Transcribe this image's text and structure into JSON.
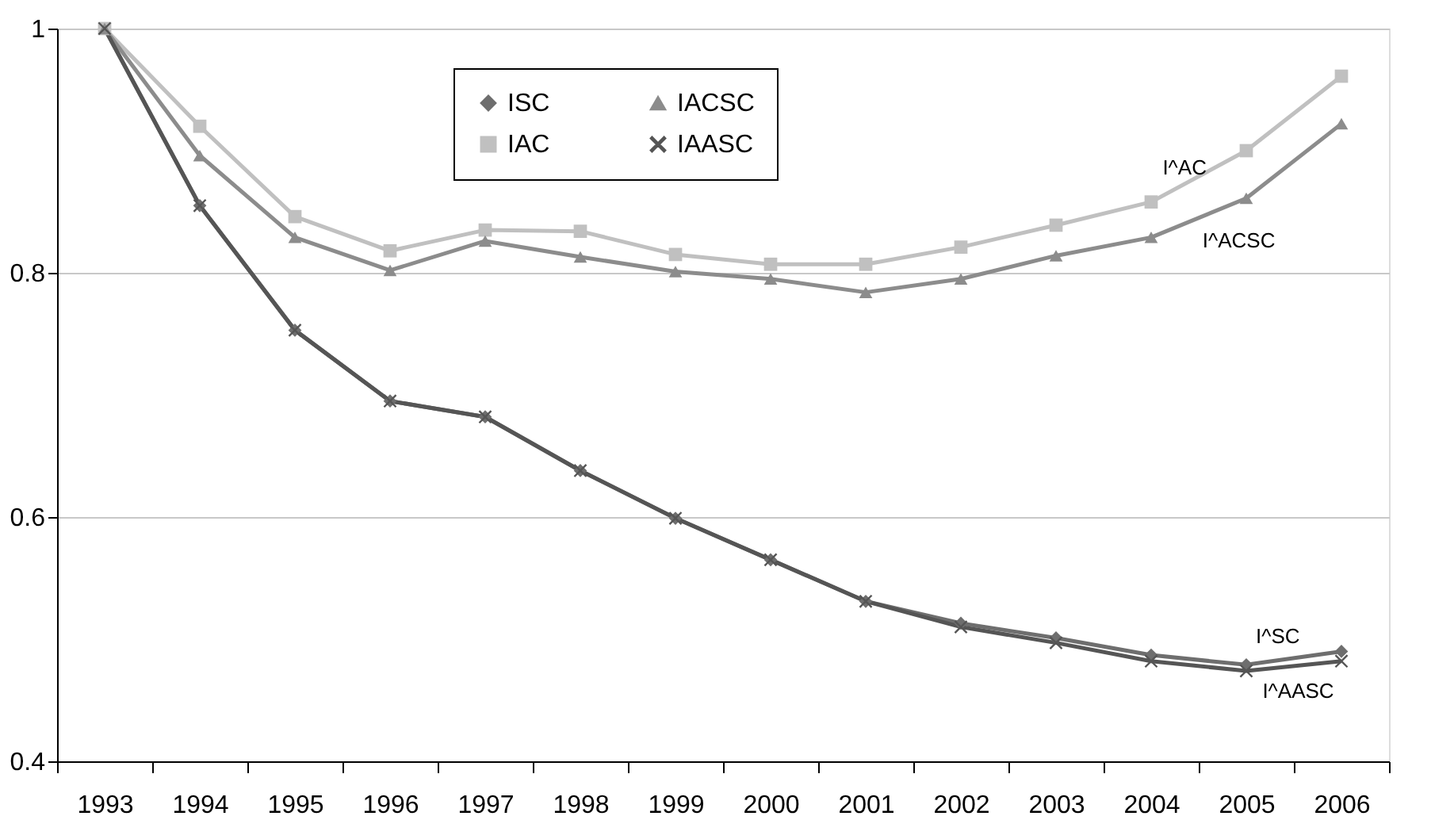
{
  "chart_data": {
    "type": "line",
    "categories": [
      "1993",
      "1994",
      "1995",
      "1996",
      "1997",
      "1998",
      "1999",
      "2000",
      "2001",
      "2002",
      "2003",
      "2004",
      "2005",
      "2006"
    ],
    "series": [
      {
        "name": "ISC",
        "color": "#6e6e6e",
        "marker": "diamond",
        "values": [
          1.0,
          0.855,
          0.753,
          0.695,
          0.682,
          0.638,
          0.599,
          0.565,
          0.531,
          0.513,
          0.501,
          0.487,
          0.479,
          0.49
        ]
      },
      {
        "name": "IAC",
        "color": "#c0c0c0",
        "marker": "square",
        "values": [
          1.0,
          0.92,
          0.846,
          0.818,
          0.835,
          0.834,
          0.815,
          0.807,
          0.807,
          0.821,
          0.839,
          0.858,
          0.9,
          0.961
        ]
      },
      {
        "name": "IACSC",
        "color": "#8c8c8c",
        "marker": "triangle",
        "values": [
          1.0,
          0.896,
          0.829,
          0.802,
          0.826,
          0.813,
          0.801,
          0.795,
          0.784,
          0.795,
          0.814,
          0.829,
          0.861,
          0.922
        ]
      },
      {
        "name": "IAASC",
        "color": "#555555",
        "marker": "cross",
        "values": [
          1.0,
          0.855,
          0.753,
          0.695,
          0.682,
          0.638,
          0.599,
          0.565,
          0.531,
          0.51,
          0.497,
          0.482,
          0.474,
          0.482
        ]
      }
    ],
    "ylim": [
      0.4,
      1
    ],
    "yticks": [
      0.4,
      0.6,
      0.8,
      1
    ],
    "grid": "y",
    "legend": "top",
    "line_style": "solid",
    "annotations": [
      "I^AC",
      "I^ACSC",
      "I^SC",
      "I^AASC"
    ]
  }
}
